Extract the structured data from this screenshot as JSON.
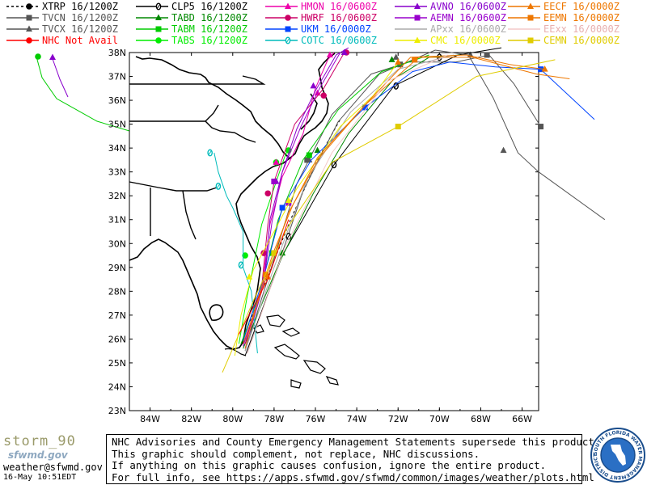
{
  "legend": [
    {
      "label": "XTRP 16/1200Z",
      "color": "#000000",
      "marker": "dot-dash"
    },
    {
      "label": "TVCN 16/1200Z",
      "color": "#555555",
      "marker": "square"
    },
    {
      "label": "TVCX 16/1200Z",
      "color": "#555555",
      "marker": "triangle"
    },
    {
      "label": "NHC Not Avail",
      "color": "#ff0000",
      "marker": "circle"
    },
    {
      "label": "CLP5 16/1200Z",
      "color": "#000000",
      "marker": "zero"
    },
    {
      "label": "TABD 16/1200Z",
      "color": "#008800",
      "marker": "triangle"
    },
    {
      "label": "TABM 16/1200Z",
      "color": "#00cc00",
      "marker": "square"
    },
    {
      "label": "TABS 16/1200Z",
      "color": "#00ee00",
      "marker": "circle"
    },
    {
      "label": "HMON 16/0600Z",
      "color": "#ee00aa",
      "marker": "triangle"
    },
    {
      "label": "HWRF 16/0600Z",
      "color": "#cc0066",
      "marker": "circle"
    },
    {
      "label": "UKM 16/0000Z",
      "color": "#0044ff",
      "marker": "square"
    },
    {
      "label": "COTC 16/0600Z",
      "color": "#00bbbb",
      "marker": "zero"
    },
    {
      "label": "AVNO 16/0600Z",
      "color": "#8800cc",
      "marker": "triangle"
    },
    {
      "label": "AEMN 16/0600Z",
      "color": "#9900cc",
      "marker": "square"
    },
    {
      "label": "APxx 16/0600Z",
      "color": "#aaaaaa",
      "marker": "none"
    },
    {
      "label": "CMC 16/0000Z",
      "color": "#eeee00",
      "marker": "triangle"
    },
    {
      "label": "EECF 16/0000Z",
      "color": "#ee7700",
      "marker": "triangle"
    },
    {
      "label": "EEMN 16/0000Z",
      "color": "#ee7700",
      "marker": "square"
    },
    {
      "label": "EExx 16/0000Z",
      "color": "#f4c8c8",
      "marker": "none"
    },
    {
      "label": "CEMN 16/0000Z",
      "color": "#e0cc00",
      "marker": "square"
    }
  ],
  "map": {
    "lat_labels": [
      "38N",
      "37N",
      "36N",
      "35N",
      "34N",
      "33N",
      "32N",
      "31N",
      "30N",
      "29N",
      "28N",
      "27N",
      "26N",
      "25N",
      "24N",
      "23N"
    ],
    "lon_labels": [
      "84W",
      "82W",
      "80W",
      "78W",
      "76W",
      "74W",
      "72W",
      "70W",
      "68W",
      "66W"
    ],
    "lat_range": [
      23,
      38
    ],
    "lon_range": [
      -85,
      -65.2
    ]
  },
  "tracks": [
    {
      "id": "xtrp",
      "color": "#000000",
      "dash": "3,3",
      "pts": [
        [
          -79.6,
          25.8
        ],
        [
          -78.5,
          28.2
        ],
        [
          -77.2,
          31.0
        ],
        [
          -75.9,
          33.5
        ],
        [
          -74.8,
          35.2
        ]
      ],
      "marker": "none"
    },
    {
      "id": "tvcn",
      "color": "#555555",
      "pts": [
        [
          -79.4,
          25.5
        ],
        [
          -78.2,
          28.8
        ],
        [
          -76.9,
          32.5
        ],
        [
          -75.2,
          35.4
        ],
        [
          -73.3,
          37.1
        ],
        [
          -71.5,
          37.6
        ],
        [
          -69.2,
          37.6
        ],
        [
          -67.6,
          37.9
        ],
        [
          -66.4,
          36.7
        ],
        [
          -65.1,
          34.9
        ]
      ],
      "marker": "square",
      "mk": [
        [
          -76.4,
          33.5
        ],
        [
          -71.9,
          37.5
        ],
        [
          -67.7,
          37.9
        ],
        [
          -65.1,
          34.9
        ]
      ]
    },
    {
      "id": "tvcx",
      "color": "#555555",
      "pts": [
        [
          -79.3,
          25.4
        ],
        [
          -78.0,
          28.6
        ],
        [
          -76.6,
          32.2
        ],
        [
          -74.9,
          35.1
        ],
        [
          -72.9,
          37.1
        ],
        [
          -70.2,
          38.1
        ],
        [
          -68.6,
          37.9
        ],
        [
          -67.4,
          36.1
        ],
        [
          -66.2,
          33.8
        ],
        [
          -65.2,
          33.0
        ],
        [
          -62.0,
          31.0
        ]
      ],
      "marker": "triangle",
      "mk": [
        [
          -76.3,
          33.5
        ],
        [
          -72.1,
          37.8
        ],
        [
          -68.5,
          37.9
        ],
        [
          -66.9,
          33.9
        ]
      ]
    },
    {
      "id": "clp5",
      "color": "#000000",
      "pts": [
        [
          -79.4,
          25.3
        ],
        [
          -77.6,
          29.5
        ],
        [
          -75.1,
          33.3
        ],
        [
          -72.2,
          36.6
        ],
        [
          -69.1,
          37.9
        ],
        [
          -67.0,
          38.2
        ]
      ],
      "marker": "zero",
      "mk": [
        [
          -77.3,
          30.3
        ],
        [
          -75.1,
          33.3
        ],
        [
          -72.1,
          36.6
        ],
        [
          -70.0,
          37.8
        ]
      ]
    },
    {
      "id": "tabd",
      "color": "#008800",
      "pts": [
        [
          -79.5,
          25.6
        ],
        [
          -77.8,
          29.1
        ],
        [
          -76.1,
          32.1
        ],
        [
          -74.4,
          34.6
        ],
        [
          -72.2,
          36.9
        ],
        [
          -70.5,
          37.8
        ],
        [
          -69.0,
          37.9
        ]
      ],
      "marker": "triangle",
      "mk": [
        [
          -77.6,
          29.6
        ],
        [
          -75.9,
          33.9
        ],
        [
          -72.3,
          37.7
        ]
      ]
    },
    {
      "id": "tabm",
      "color": "#00cc00",
      "pts": [
        [
          -79.6,
          25.8
        ],
        [
          -78.7,
          27.9
        ],
        [
          -77.8,
          31.0
        ],
        [
          -76.6,
          33.5
        ],
        [
          -74.9,
          35.6
        ],
        [
          -72.8,
          37.2
        ],
        [
          -70.5,
          37.9
        ]
      ],
      "marker": "square",
      "mk": [
        [
          -78.1,
          29.6
        ],
        [
          -76.3,
          33.7
        ]
      ]
    },
    {
      "id": "tabs",
      "color": "#00ee00",
      "pts": [
        [
          -79.7,
          25.8
        ],
        [
          -79.3,
          27.8
        ],
        [
          -78.6,
          30.8
        ],
        [
          -77.5,
          33.6
        ],
        [
          -77.3,
          34.0
        ]
      ],
      "marker": "circle",
      "mk": [
        [
          -79.4,
          29.5
        ],
        [
          -77.9,
          33.4
        ],
        [
          -77.3,
          33.9
        ]
      ]
    },
    {
      "id": "hmon",
      "color": "#ee00aa",
      "pts": [
        [
          -79.5,
          25.7
        ],
        [
          -78.6,
          28.1
        ],
        [
          -78.2,
          30.8
        ],
        [
          -77.6,
          32.8
        ],
        [
          -76.6,
          34.6
        ],
        [
          -76.0,
          36.5
        ],
        [
          -75.4,
          37.7
        ],
        [
          -75.1,
          38.0
        ]
      ],
      "marker": "triangle",
      "mk": [
        [
          -77.9,
          33.4
        ],
        [
          -75.9,
          36.3
        ],
        [
          -75.3,
          37.9
        ]
      ]
    },
    {
      "id": "hwrf",
      "color": "#cc0066",
      "pts": [
        [
          -79.4,
          25.8
        ],
        [
          -78.6,
          28.2
        ],
        [
          -78.3,
          30.8
        ],
        [
          -78.0,
          32.6
        ],
        [
          -77.0,
          35.0
        ],
        [
          -75.6,
          36.5
        ],
        [
          -74.6,
          38.0
        ]
      ],
      "marker": "circle",
      "mk": [
        [
          -78.5,
          29.6
        ],
        [
          -78.3,
          32.1
        ],
        [
          -75.6,
          36.2
        ],
        [
          -74.5,
          38.0
        ]
      ]
    },
    {
      "id": "ukm",
      "color": "#0044ff",
      "pts": [
        [
          -79.5,
          25.9
        ],
        [
          -78.5,
          28.6
        ],
        [
          -77.6,
          31.5
        ],
        [
          -76.2,
          33.5
        ],
        [
          -73.6,
          35.7
        ],
        [
          -71.3,
          37.2
        ],
        [
          -69.5,
          37.6
        ],
        [
          -67.3,
          37.4
        ],
        [
          -65.1,
          37.3
        ],
        [
          -62.5,
          35.2
        ]
      ],
      "marker": "square",
      "mk": [
        [
          -77.6,
          31.5
        ],
        [
          -73.6,
          35.7
        ],
        [
          -65.1,
          37.3
        ]
      ]
    },
    {
      "id": "cotc",
      "color": "#00bbbb",
      "pts": [
        [
          -78.8,
          25.4
        ],
        [
          -79.1,
          28.0
        ],
        [
          -79.5,
          29.0
        ],
        [
          -79.5,
          30.5
        ],
        [
          -80.0,
          31.5
        ],
        [
          -80.3,
          32.0
        ],
        [
          -80.7,
          33.0
        ],
        [
          -80.9,
          33.8
        ]
      ],
      "marker": "zero",
      "mk": [
        [
          -79.6,
          29.1
        ],
        [
          -80.7,
          32.4
        ],
        [
          -81.1,
          33.8
        ]
      ]
    },
    {
      "id": "avno",
      "color": "#8800cc",
      "pts": [
        [
          -79.4,
          25.6
        ],
        [
          -78.5,
          28.3
        ],
        [
          -78.2,
          31.0
        ],
        [
          -77.6,
          33.0
        ],
        [
          -76.9,
          34.8
        ],
        [
          -76.0,
          36.4
        ],
        [
          -75.0,
          37.9
        ],
        [
          -74.4,
          38.2
        ]
      ],
      "marker": "triangle",
      "mk": [
        [
          -77.9,
          32.6
        ],
        [
          -76.1,
          36.6
        ],
        [
          -74.6,
          38.0
        ]
      ]
    },
    {
      "id": "aemn",
      "color": "#9900cc",
      "pts": [
        [
          -79.5,
          25.7
        ],
        [
          -78.5,
          28.4
        ],
        [
          -78.1,
          30.9
        ],
        [
          -77.6,
          33.0
        ],
        [
          -76.7,
          34.9
        ],
        [
          -75.8,
          36.5
        ],
        [
          -74.8,
          38.0
        ]
      ],
      "marker": "square",
      "mk": [
        [
          -78.0,
          32.6
        ],
        [
          -77.3,
          31.7
        ]
      ]
    },
    {
      "id": "apxx",
      "color": "#aaaaaa",
      "pts": [
        [
          -79.4,
          25.5
        ],
        [
          -78.0,
          29.0
        ],
        [
          -76.4,
          32.7
        ],
        [
          -74.3,
          35.5
        ],
        [
          -72.0,
          37.3
        ],
        [
          -69.3,
          37.9
        ]
      ],
      "marker": "none",
      "mk": []
    },
    {
      "id": "cmc",
      "color": "#eeee00",
      "pts": [
        [
          -79.9,
          25.3
        ],
        [
          -79.6,
          27.0
        ],
        [
          -79.0,
          28.9
        ],
        [
          -78.0,
          30.5
        ],
        [
          -76.9,
          32.3
        ],
        [
          -74.8,
          34.9
        ],
        [
          -73.2,
          36.2
        ],
        [
          -72.0,
          37.6
        ]
      ],
      "marker": "triangle",
      "mk": [
        [
          -79.2,
          28.6
        ],
        [
          -77.3,
          31.8
        ]
      ]
    },
    {
      "id": "eecf",
      "color": "#ee7700",
      "pts": [
        [
          -79.4,
          25.6
        ],
        [
          -78.6,
          28.2
        ],
        [
          -78.0,
          29.7
        ],
        [
          -77.1,
          31.6
        ],
        [
          -75.9,
          33.6
        ],
        [
          -73.5,
          35.9
        ],
        [
          -71.4,
          37.8
        ],
        [
          -68.7,
          37.9
        ],
        [
          -66.6,
          37.5
        ],
        [
          -64.9,
          37.3
        ]
      ],
      "marker": "triangle",
      "mk": [
        [
          -78.3,
          28.6
        ],
        [
          -72.0,
          37.6
        ],
        [
          -64.9,
          37.3
        ]
      ]
    },
    {
      "id": "eemn",
      "color": "#ee7700",
      "pts": [
        [
          -79.5,
          25.8
        ],
        [
          -78.4,
          28.5
        ],
        [
          -77.3,
          31.3
        ],
        [
          -75.8,
          33.6
        ],
        [
          -73.6,
          35.8
        ],
        [
          -71.0,
          37.8
        ],
        [
          -68.4,
          37.8
        ],
        [
          -65.3,
          37.1
        ],
        [
          -63.7,
          36.9
        ]
      ],
      "marker": "square",
      "mk": [
        [
          -78.4,
          28.7
        ],
        [
          -71.2,
          37.7
        ]
      ]
    },
    {
      "id": "eexx",
      "color": "#f4c8c8",
      "pts": [
        [
          -79.3,
          25.4
        ],
        [
          -77.5,
          29.8
        ],
        [
          -75.2,
          33.8
        ],
        [
          -72.5,
          36.8
        ],
        [
          -69.6,
          37.9
        ]
      ],
      "marker": "none",
      "mk": []
    },
    {
      "id": "cemn",
      "color": "#e0cc00",
      "pts": [
        [
          -80.5,
          24.6
        ],
        [
          -79.0,
          27.6
        ],
        [
          -77.4,
          30.6
        ],
        [
          -75.2,
          33.4
        ],
        [
          -72.0,
          34.9
        ],
        [
          -68.2,
          37.0
        ],
        [
          -64.4,
          37.7
        ]
      ],
      "marker": "square",
      "mk": [
        [
          -78.0,
          29.6
        ],
        [
          -72.0,
          34.9
        ]
      ]
    },
    {
      "id": "nhc",
      "color": "#ff0000",
      "pts": [
        [
          -79.7,
          26.2
        ],
        [
          -78.3,
          28.5
        ],
        [
          -77.3,
          31.0
        ]
      ],
      "marker": "none",
      "mk": []
    }
  ],
  "footer": {
    "logo_text": "storm_90",
    "logo_subtitle": "sfwmd.gov",
    "email": "weather@sfwmd.gov",
    "timestamp": "16-May 10:51EDT",
    "disclaimer": [
      "NHC Advisories and County Emergency Management Statements supersede this product.",
      "This graphic should complement, not replace, NHC discussions.",
      "If anything on this graphic causes confusion, ignore the entire product.",
      "For full info, see  https://apps.sfwmd.gov/sfwmd/common/images/weather/plots.html"
    ],
    "seal_text": "SOUTH FLORIDA WATER MANAGEMENT DISTRICT"
  }
}
